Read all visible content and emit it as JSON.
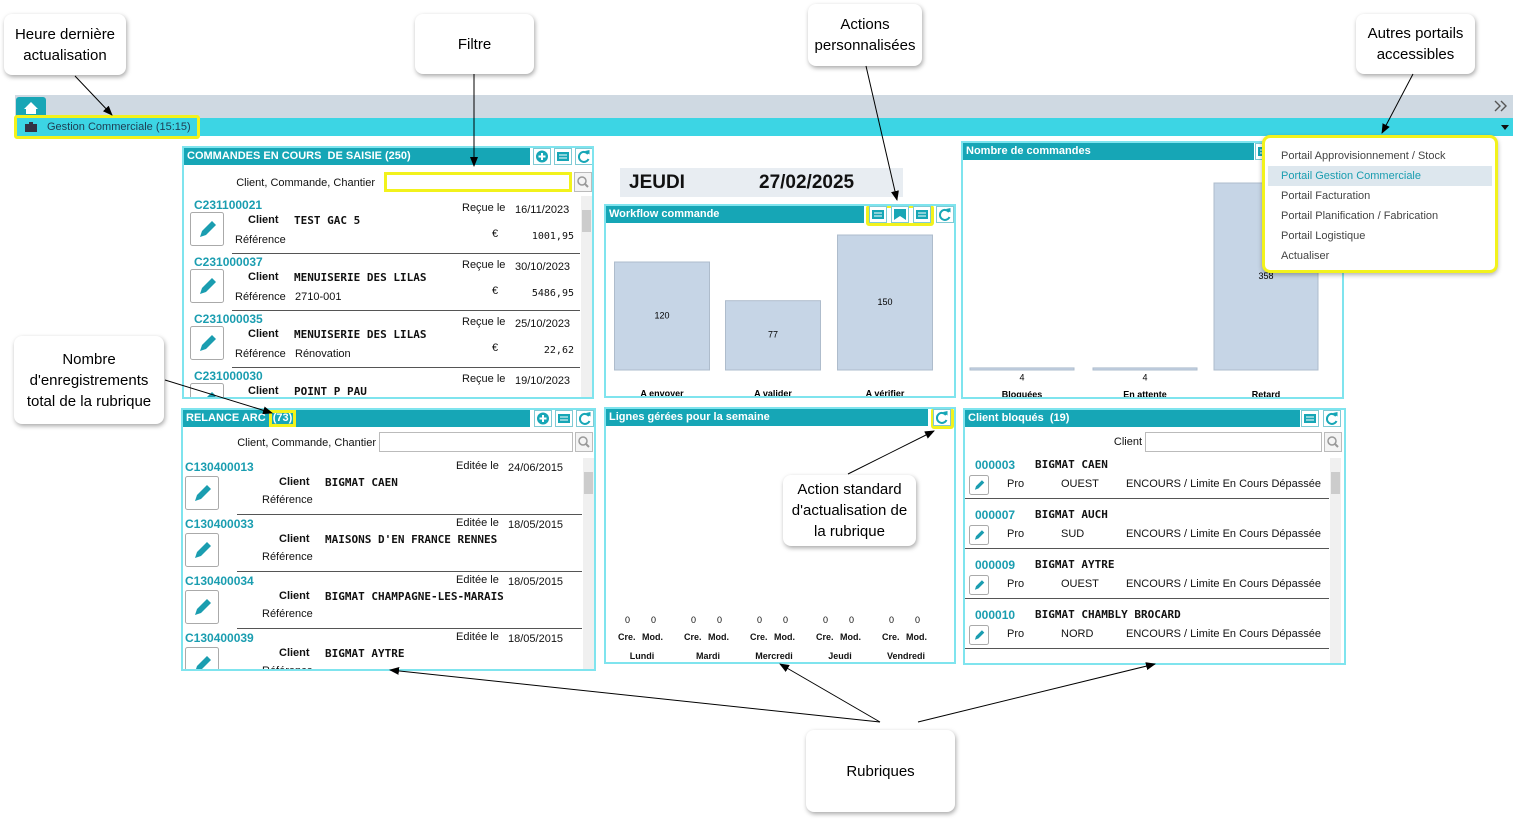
{
  "callouts": {
    "heure": "Heure dernière actualisation",
    "filtre": "Filtre",
    "actions": "Actions personnalisées",
    "autres": "Autres portails accessibles",
    "nombre": "Nombre d'enregistrements total de la rubrique",
    "action_standard": "Action standard d'actualisation de la rubrique",
    "rubriques": "Rubriques"
  },
  "header": {
    "tab": "Gestion Commerciale (15:15)"
  },
  "commandes": {
    "title": "COMMANDES EN COURS  DE SAISIE (250)",
    "filter_label": "Client, Commande, Chantier",
    "labels": {
      "client": "Client",
      "reference": "Référence",
      "date": "Reçue le",
      "amount": "€"
    },
    "records": [
      {
        "code": "C231100021",
        "client": "TEST GAC 5",
        "date": "16/11/2023",
        "amount": "1001,95"
      },
      {
        "code": "C231000037",
        "client": "MENUISERIE DES LILAS",
        "reference": "2710-001",
        "date": "30/10/2023",
        "amount": "5486,95"
      },
      {
        "code": "C231000035",
        "client": "MENUISERIE DES LILAS",
        "reference": "Rénovation",
        "date": "25/10/2023",
        "amount": "22,62"
      },
      {
        "code": "C231000030",
        "client": "POINT P PAU",
        "date": "19/10/2023"
      }
    ]
  },
  "relance": {
    "title": "RELANCE ARC",
    "count": "(73)",
    "filter_label": "Client, Commande, Chantier",
    "labels": {
      "client": "Client",
      "reference": "Référence",
      "date": "Editée le"
    },
    "records": [
      {
        "code": "C130400013",
        "client": "BIGMAT CAEN",
        "date": "24/06/2015"
      },
      {
        "code": "C130400033",
        "client": "MAISONS D'EN FRANCE RENNES",
        "date": "18/05/2015"
      },
      {
        "code": "C130400034",
        "client": "BIGMAT CHAMPAGNE-LES-MARAIS",
        "date": "18/05/2015"
      },
      {
        "code": "C130400039",
        "client": "BIGMAT AYTRE",
        "date": "18/05/2015"
      }
    ]
  },
  "today": {
    "day": "JEUDI",
    "date": "27/02/2025"
  },
  "workflow": {
    "title": "Workflow commande",
    "chart_data": {
      "type": "bar",
      "categories": [
        "A envoyer",
        "A valider",
        "A vérifier"
      ],
      "values": [
        120,
        77,
        150
      ],
      "color": "#c6d5e6"
    }
  },
  "nombre": {
    "title": "Nombre de commandes",
    "chart_data": {
      "type": "bar",
      "categories": [
        "Bloquées",
        "En attente",
        "Retard"
      ],
      "values": [
        4,
        4,
        358
      ],
      "color": "#c6d5e6"
    }
  },
  "lignes": {
    "title": "Lignes gérées pour la semaine",
    "labels": {
      "cre": "Cre.",
      "mod": "Mod."
    },
    "days": [
      {
        "name": "Lundi",
        "cre": 0,
        "mod": 0
      },
      {
        "name": "Mardi",
        "cre": 0,
        "mod": 0
      },
      {
        "name": "Mercredi",
        "cre": 0,
        "mod": 0
      },
      {
        "name": "Jeudi",
        "cre": 0,
        "mod": 0
      },
      {
        "name": "Vendredi",
        "cre": 0,
        "mod": 0
      }
    ]
  },
  "bloques": {
    "title": "Client bloqués  (19)",
    "filter_label": "Client",
    "rows": [
      {
        "code": "000003",
        "name": "BIGMAT CAEN",
        "type": "Pro",
        "region": "OUEST",
        "status": "ENCOURS / Limite En Cours Dépassée"
      },
      {
        "code": "000007",
        "name": "BIGMAT AUCH",
        "type": "Pro",
        "region": "SUD",
        "status": "ENCOURS / Limite En Cours Dépassée"
      },
      {
        "code": "000009",
        "name": "BIGMAT AYTRE",
        "type": "Pro",
        "region": "OUEST",
        "status": "ENCOURS / Limite En Cours Dépassée"
      },
      {
        "code": "000010",
        "name": "BIGMAT CHAMBLY BROCARD",
        "type": "Pro",
        "region": "NORD",
        "status": "ENCOURS / Limite En Cours Dépassée"
      }
    ]
  },
  "menu": {
    "items": [
      "Portail Approvisionnement / Stock",
      "Portail Gestion Commerciale",
      "Portail Facturation",
      "Portail Planification / Fabrication",
      "Portail Logistique",
      "Actualiser"
    ],
    "selected": 1
  }
}
